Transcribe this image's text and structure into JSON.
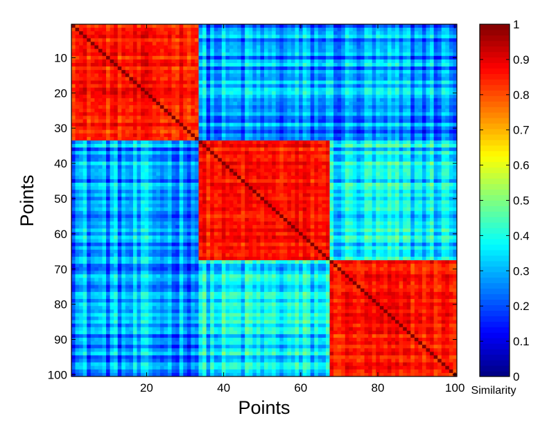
{
  "chart_data": {
    "type": "heatmap",
    "xlabel": "Points",
    "ylabel": "Points",
    "colorbar_label": "Similarity",
    "n": 100,
    "xlim": [
      1,
      100
    ],
    "ylim": [
      1,
      100
    ],
    "y_reversed": true,
    "clim": [
      0,
      1
    ],
    "colormap": "jet",
    "grid": false,
    "x_ticks": [
      20,
      40,
      60,
      80,
      100
    ],
    "y_ticks": [
      10,
      20,
      30,
      40,
      50,
      60,
      70,
      80,
      90,
      100
    ],
    "colorbar_ticks": [
      0,
      0.1,
      0.2,
      0.3,
      0.4,
      0.5,
      0.6,
      0.7,
      0.8,
      0.9,
      1
    ],
    "clusters": [
      {
        "start": 1,
        "end": 33,
        "within_similarity": 0.85
      },
      {
        "start": 34,
        "end": 67,
        "within_similarity": 0.85
      },
      {
        "start": 68,
        "end": 100,
        "within_similarity": 0.85
      }
    ],
    "between_cluster_similarity": [
      {
        "clusters": [
          1,
          2
        ],
        "value": 0.27
      },
      {
        "clusters": [
          1,
          3
        ],
        "value": 0.27
      },
      {
        "clusters": [
          2,
          3
        ],
        "value": 0.35
      }
    ],
    "diagonal_value": 1
  }
}
